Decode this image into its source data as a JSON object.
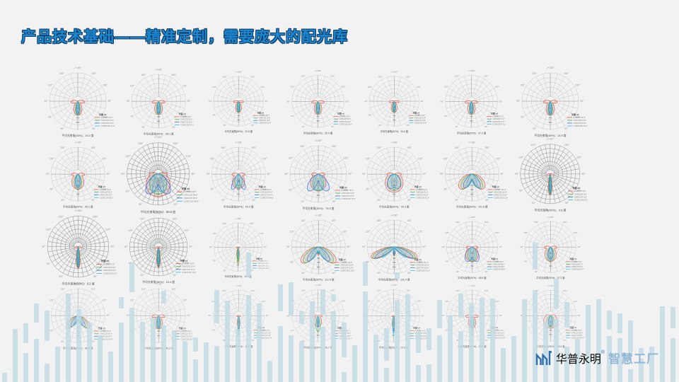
{
  "slide": {
    "title": "产品技术基础——精准定制，需要庞大的配光库",
    "background_color": "#f1f2f1",
    "title_fill_color": "#1a88d3",
    "title_outline_color": "#11395f"
  },
  "logo": {
    "name": "华普永明",
    "reg_mark": "®",
    "suffix": "智慧工厂",
    "name_color": "#2e6fae",
    "suffix_color": "#94b9d6",
    "icon": "factory-bars-icon"
  },
  "decor": {
    "bar_color": "#c2d9e4",
    "bar_count": 64,
    "bar_opacity": 0.8,
    "seed": 20240717
  },
  "chart_common": {
    "top_label": "-/+180°",
    "angle_labels": [
      "30°",
      "60°",
      "90°",
      "120°",
      "150°"
    ],
    "ring_values": [
      "150",
      "300",
      "450",
      "600"
    ],
    "legend_title": "光强 cd",
    "legend_entries": [
      {
        "color": "#e05a50",
        "label": "C0/C180"
      },
      {
        "color": "#4caf50",
        "label": "C45/C225"
      },
      {
        "color": "#3f6fd8",
        "label": "C90/C270"
      },
      {
        "color": "#35bcd4",
        "label": "C135/C315"
      }
    ],
    "caption_prefix": "平均光束角(50%)：",
    "caption_suffix": " 度",
    "grid_color_light": "#b4babc",
    "grid_color_dark": "#767b7e",
    "curve_colors": {
      "red": "#e05a50",
      "green": "#4caf50",
      "blue": "#3f6fd8",
      "cyan": "#35bcd4",
      "olive": "#9aa43c"
    }
  },
  "charts": [
    {
      "row": 0,
      "col": 0,
      "beam": "narrow",
      "angle": "24.3",
      "dense": false,
      "scale": 1.0
    },
    {
      "row": 0,
      "col": 1,
      "beam": "narrow",
      "angle": "26.1",
      "dense": false,
      "scale": 0.95
    },
    {
      "row": 0,
      "col": 2,
      "beam": "narrow-s",
      "angle": "22.8",
      "dense": false,
      "scale": 0.88
    },
    {
      "row": 0,
      "col": 3,
      "beam": "narrow",
      "angle": "25.4",
      "dense": false,
      "scale": 0.92
    },
    {
      "row": 0,
      "col": 4,
      "beam": "narrow-s",
      "angle": "23.6",
      "dense": false,
      "scale": 0.88
    },
    {
      "row": 0,
      "col": 5,
      "beam": "narrow",
      "angle": "27.2",
      "dense": false,
      "scale": 0.92
    },
    {
      "row": 0,
      "col": 6,
      "beam": "narrow",
      "angle": "24.9",
      "dense": false,
      "scale": 1.0
    },
    {
      "row": 1,
      "col": 0,
      "beam": "medium",
      "angle": "55.2",
      "dense": false,
      "scale": 0.95
    },
    {
      "row": 1,
      "col": 1,
      "beam": "wide-fan",
      "angle": "88.6",
      "dense": true,
      "scale": 1.1
    },
    {
      "row": 1,
      "col": 2,
      "beam": "medium-blue",
      "angle": "64.0",
      "dense": false,
      "scale": 0.95
    },
    {
      "row": 1,
      "col": 3,
      "beam": "wide-blue",
      "angle": "76.5",
      "dense": false,
      "scale": 1.0
    },
    {
      "row": 1,
      "col": 4,
      "beam": "wide",
      "angle": "92.3",
      "dense": false,
      "scale": 0.95
    },
    {
      "row": 1,
      "col": 5,
      "beam": "wide-batwing",
      "angle": "101.8",
      "dense": false,
      "scale": 0.95
    },
    {
      "row": 1,
      "col": 6,
      "beam": "pencil",
      "angle": "9.6",
      "dense": true,
      "scale": 1.05
    },
    {
      "row": 2,
      "col": 0,
      "beam": "pencil",
      "angle": "8.2",
      "dense": true,
      "scale": 1.08
    },
    {
      "row": 2,
      "col": 1,
      "beam": "pencil",
      "angle": "10.4",
      "dense": true,
      "scale": 1.02
    },
    {
      "row": 2,
      "col": 2,
      "beam": "pencil-y",
      "angle": "12.0",
      "dense": false,
      "scale": 0.85
    },
    {
      "row": 2,
      "col": 3,
      "beam": "batwing",
      "angle": "112.6",
      "dense": false,
      "scale": 0.95
    },
    {
      "row": 2,
      "col": 4,
      "beam": "batwing-x",
      "angle": "131.4",
      "dense": false,
      "scale": 0.95
    },
    {
      "row": 2,
      "col": 5,
      "beam": "fan",
      "angle": "68.9",
      "dense": false,
      "scale": 0.9
    },
    {
      "row": 2,
      "col": 6,
      "beam": "medium",
      "angle": "57.3",
      "dense": false,
      "scale": 0.9
    },
    {
      "row": 3,
      "col": 0,
      "beam": "batwing-s",
      "angle": "96.4",
      "dense": false,
      "scale": 0.95
    },
    {
      "row": 3,
      "col": 1,
      "beam": "narrow",
      "angle": "30.2",
      "dense": false,
      "scale": 0.95
    },
    {
      "row": 3,
      "col": 2,
      "beam": "pencil-c",
      "angle": "11.8",
      "dense": false,
      "scale": 0.9
    },
    {
      "row": 3,
      "col": 3,
      "beam": "narrow-g",
      "angle": "28.7",
      "dense": false,
      "scale": 0.92
    },
    {
      "row": 3,
      "col": 4,
      "beam": "pencil-c",
      "angle": "10.6",
      "dense": false,
      "scale": 0.92
    },
    {
      "row": 3,
      "col": 5,
      "beam": "narrow",
      "angle": "33.5",
      "dense": false,
      "scale": 0.9
    },
    {
      "row": 3,
      "col": 6,
      "beam": "medium-r",
      "angle": "58.4",
      "dense": false,
      "scale": 0.9
    }
  ]
}
